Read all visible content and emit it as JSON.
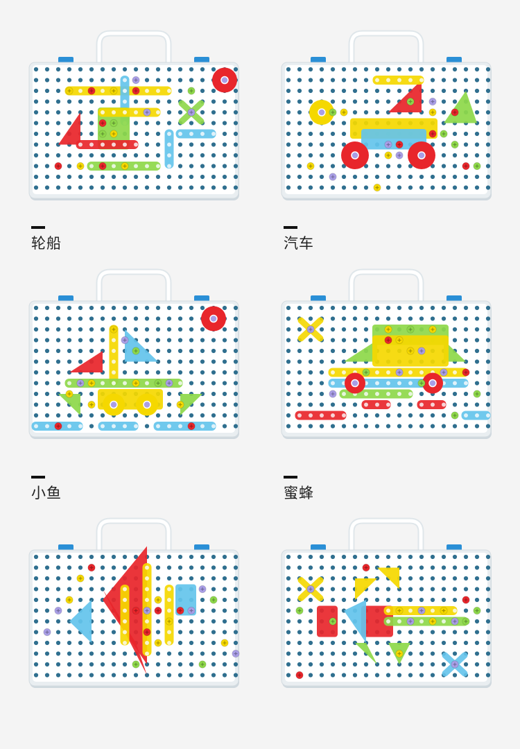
{
  "labels": {
    "ship": "轮船",
    "car": "汽车",
    "fish": "小鱼",
    "bee": "蜜蜂"
  },
  "colors": {
    "background": "#f4f4f4",
    "board": "#ffffff",
    "hole": "#2f6f8f",
    "latch": "#2a8fd6",
    "red": "#e8262b",
    "yellow": "#f5d800",
    "green": "#8ed84a",
    "blue": "#64c4ec",
    "purple": "#a99ee6"
  }
}
